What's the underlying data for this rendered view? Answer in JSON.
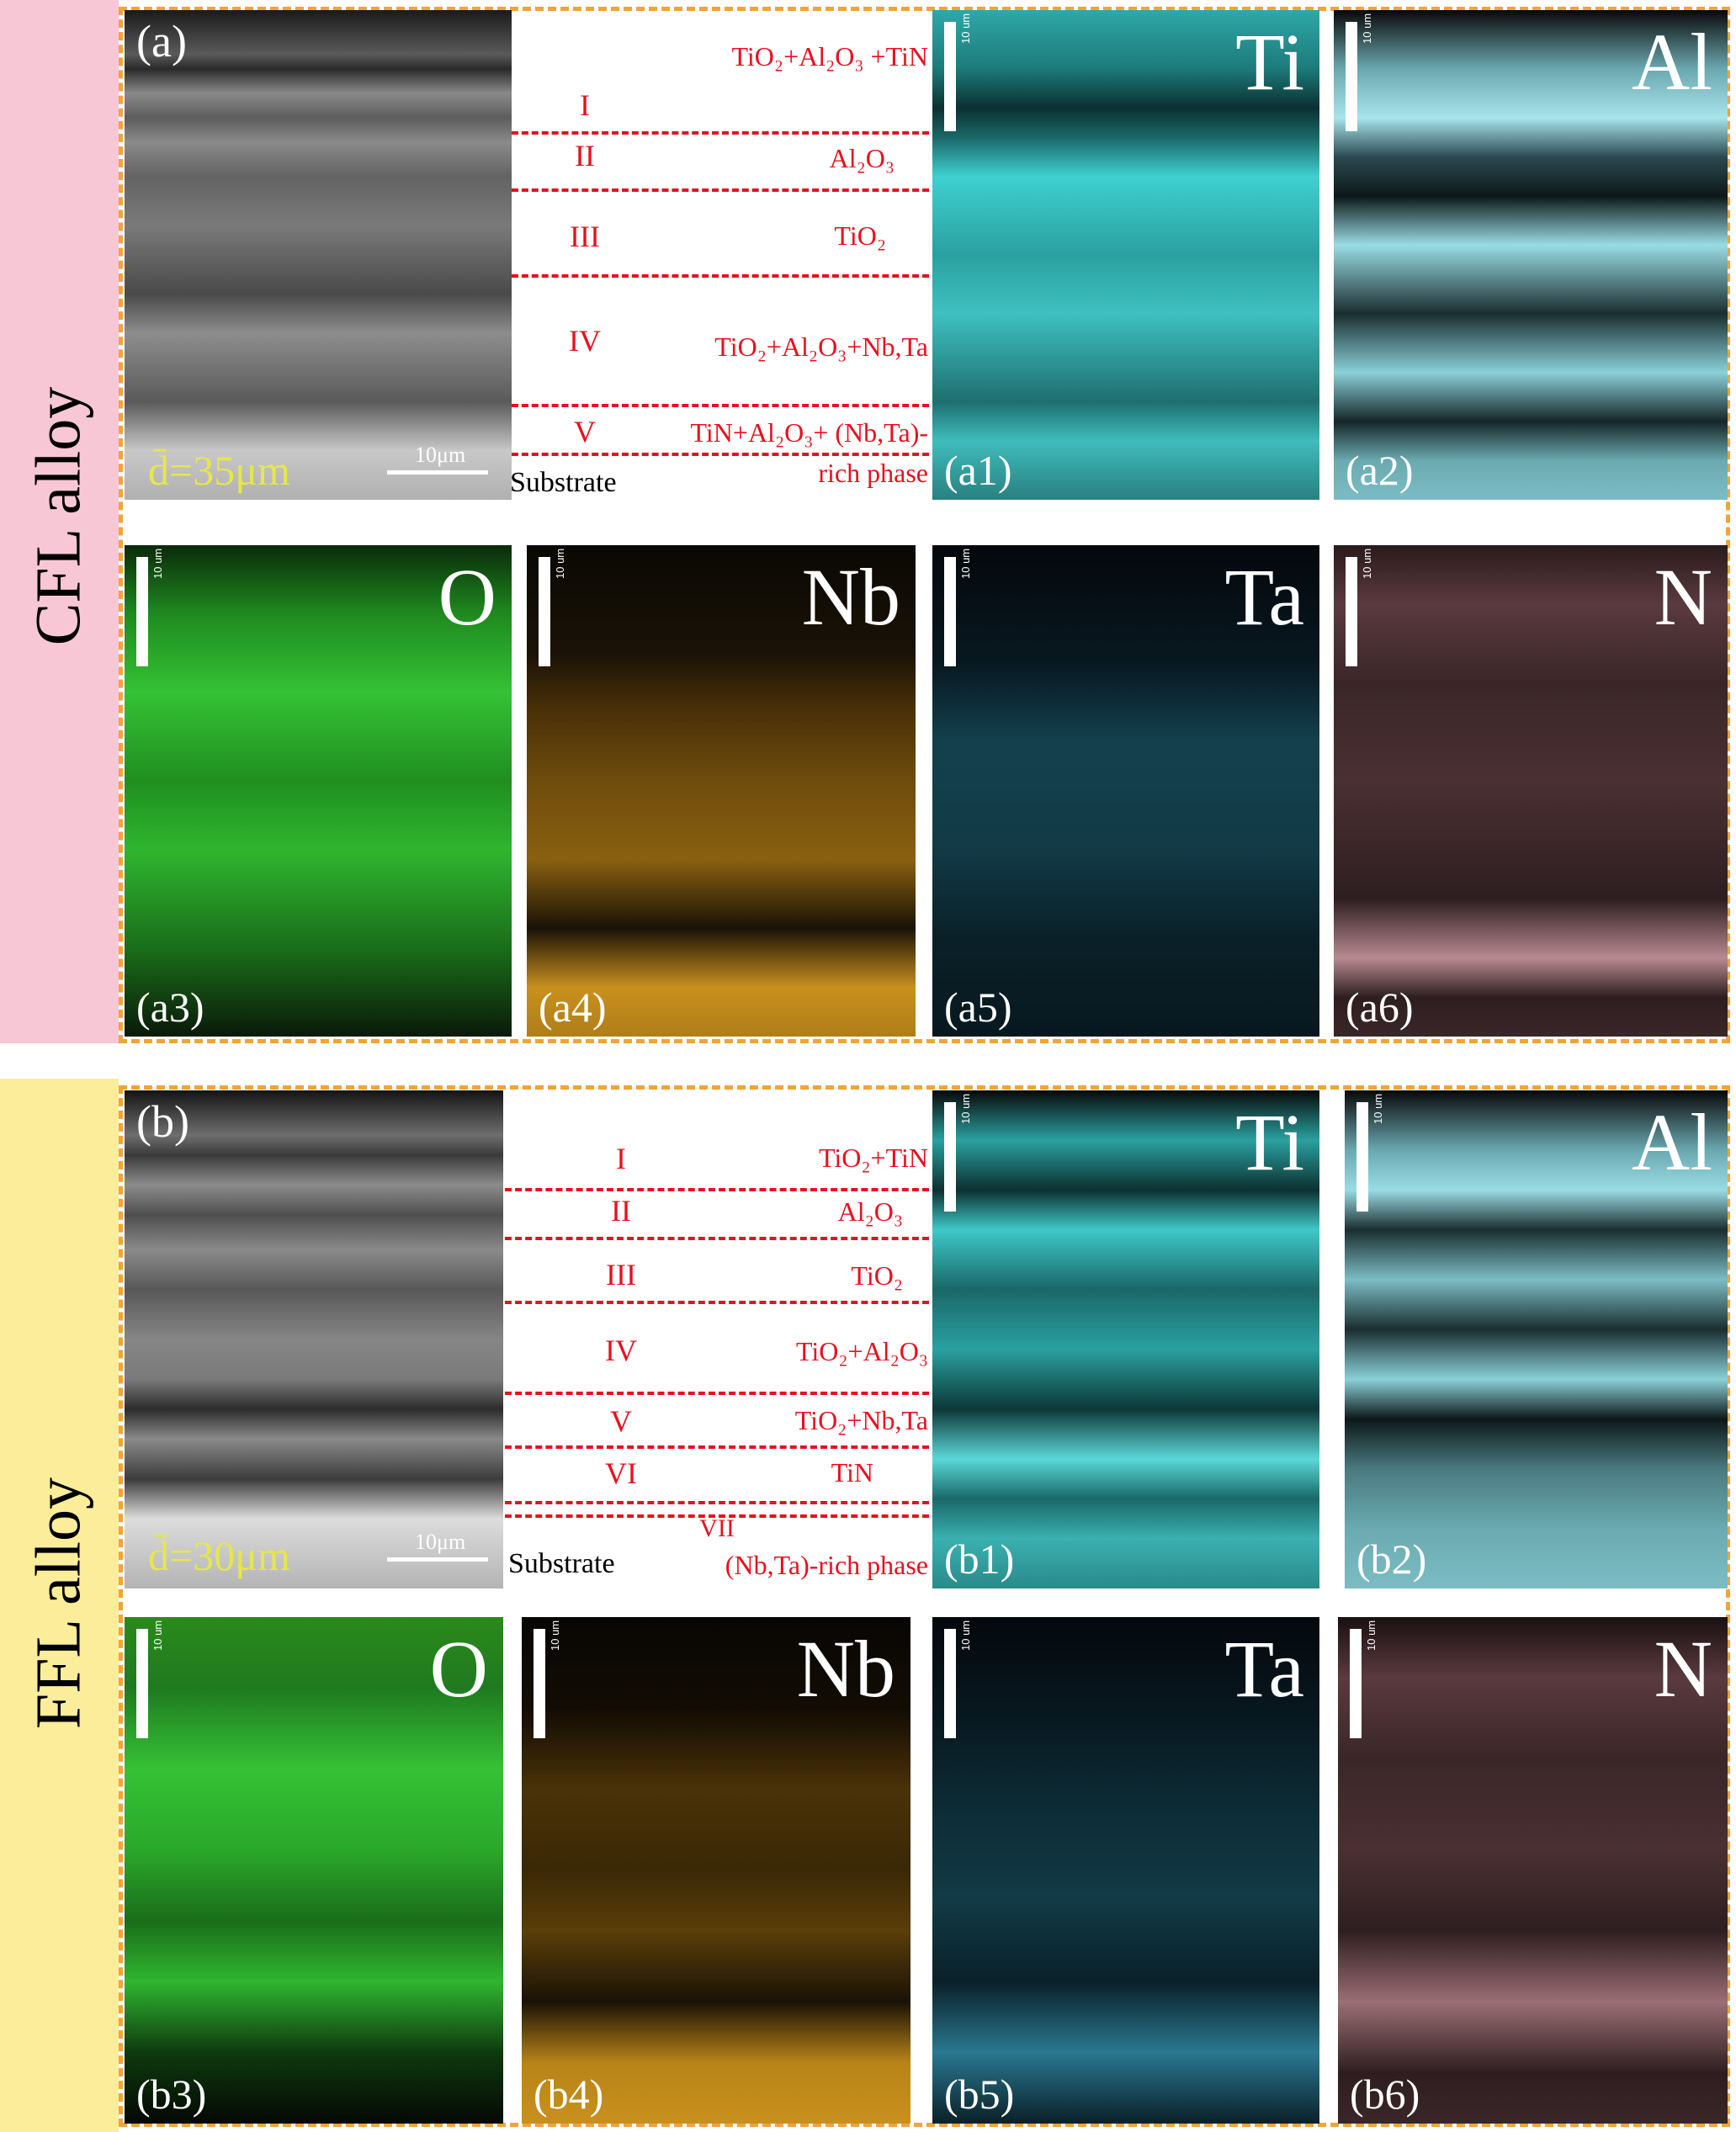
{
  "rows": [
    {
      "id": "cfl",
      "side_label": "CFL alloy",
      "side_color": "#f8c7d6",
      "sem": {
        "label": "(a)",
        "grain_size": "d̄=35μm",
        "scale": "10μm",
        "substrate": "Substrate"
      },
      "layers": [
        {
          "roman": "I",
          "phase": "TiO₂+Al₂O₃ +TiN"
        },
        {
          "roman": "II",
          "phase": "Al₂O₃"
        },
        {
          "roman": "III",
          "phase": "TiO₂"
        },
        {
          "roman": "IV",
          "phase": "TiO₂+Al₂O₃+Nb,Ta"
        },
        {
          "roman": "V",
          "phase": "TiN+Al₂O₃+ (Nb,Ta)-rich phase"
        }
      ],
      "maps": [
        {
          "label": "(a1)",
          "element": "Ti",
          "color": "#3fd0d0"
        },
        {
          "label": "(a2)",
          "element": "Al",
          "color": "#9fe0e8"
        },
        {
          "label": "(a3)",
          "element": "O",
          "color": "#2fb62f"
        },
        {
          "label": "(a4)",
          "element": "Nb",
          "color": "#c8901e"
        },
        {
          "label": "(a5)",
          "element": "Ta",
          "color": "#3aa8c8"
        },
        {
          "label": "(a6)",
          "element": "N",
          "color": "#b88a90"
        }
      ],
      "map_scale": "10 um"
    },
    {
      "id": "ffl",
      "side_label": "FFL alloy",
      "side_color": "#fbed9a",
      "sem": {
        "label": "(b)",
        "grain_size": "d̄=30μm",
        "scale": "10μm",
        "substrate": "Substrate"
      },
      "layers": [
        {
          "roman": "I",
          "phase": "TiO₂+TiN"
        },
        {
          "roman": "II",
          "phase": "Al₂O₃"
        },
        {
          "roman": "III",
          "phase": "TiO₂"
        },
        {
          "roman": "IV",
          "phase": "TiO₂+Al₂O₃"
        },
        {
          "roman": "V",
          "phase": "TiO₂+Nb,Ta"
        },
        {
          "roman": "VI",
          "phase": "TiN"
        },
        {
          "roman": "VII",
          "phase": "(Nb,Ta)-rich phase"
        }
      ],
      "maps": [
        {
          "label": "(b1)",
          "element": "Ti",
          "color": "#3fd0d0"
        },
        {
          "label": "(b2)",
          "element": "Al",
          "color": "#9fe0e8"
        },
        {
          "label": "(b3)",
          "element": "O",
          "color": "#2fb62f"
        },
        {
          "label": "(b4)",
          "element": "Nb",
          "color": "#c8901e"
        },
        {
          "label": "(b5)",
          "element": "Ta",
          "color": "#3aa8c8"
        },
        {
          "label": "(b6)",
          "element": "N",
          "color": "#b88a90"
        }
      ],
      "map_scale": "10 um"
    }
  ]
}
